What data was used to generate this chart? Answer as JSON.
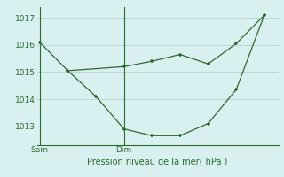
{
  "line1_x": [
    0,
    1,
    2,
    3,
    4,
    5,
    6,
    7,
    8
  ],
  "line1_y": [
    1016.1,
    1015.05,
    1014.1,
    1012.9,
    1012.65,
    1012.65,
    1013.1,
    1014.35,
    1017.1
  ],
  "line2_x": [
    1,
    3,
    4,
    5,
    6,
    7,
    8
  ],
  "line2_y": [
    1015.05,
    1015.2,
    1015.4,
    1015.65,
    1015.3,
    1016.05,
    1017.1
  ],
  "sam_x": 0,
  "dim_x": 3,
  "ylim_min": 1012.3,
  "ylim_max": 1017.4,
  "yticks": [
    1013,
    1014,
    1015,
    1016,
    1017
  ],
  "xlabel": "Pression niveau de la mer( hPa )",
  "bg_color": "#d8f0f0",
  "line_color": "#2d6a2d",
  "grid_color": "#b8d0d0",
  "tick_label_color": "#2d6a2d",
  "xlim_min": -0.1,
  "xlim_max": 8.5
}
